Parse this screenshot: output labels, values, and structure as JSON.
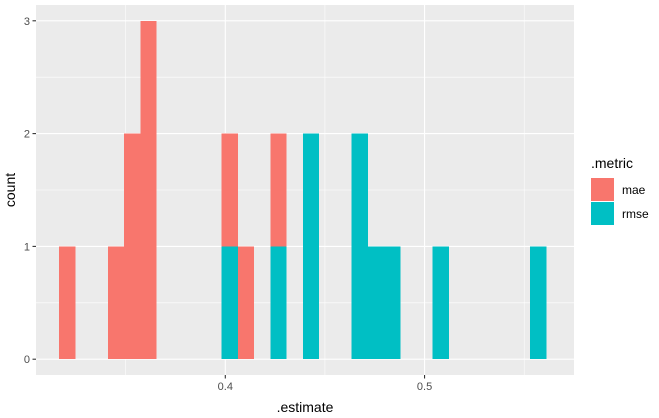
{
  "chart_data": {
    "type": "bar",
    "stacked": true,
    "xlabel": ".estimate",
    "ylabel": "count",
    "xlim": [
      0.305,
      0.575
    ],
    "ylim": [
      -0.14,
      3.14
    ],
    "x_ticks": [
      0.4,
      0.5
    ],
    "x_tick_labels": [
      "0.4",
      "0.5"
    ],
    "y_ticks": [
      0,
      1,
      2,
      3
    ],
    "y_tick_labels": [
      "0",
      "1",
      "2",
      "3"
    ],
    "grid": true,
    "background": "#ebebeb",
    "legend": {
      "title": ".metric",
      "placement": "right"
    },
    "bin_width": 0.00815,
    "series": [
      {
        "name": "mae",
        "color": "#f8766d",
        "bins": [
          {
            "x0": 0.3166,
            "count": 1
          },
          {
            "x0": 0.3411,
            "count": 1
          },
          {
            "x0": 0.3492,
            "count": 2
          },
          {
            "x0": 0.3574,
            "count": 3
          },
          {
            "x0": 0.3981,
            "count": 1
          },
          {
            "x0": 0.4063,
            "count": 1
          },
          {
            "x0": 0.4226,
            "count": 1
          }
        ]
      },
      {
        "name": "rmse",
        "color": "#00bfc4",
        "bins": [
          {
            "x0": 0.3981,
            "count": 1
          },
          {
            "x0": 0.4226,
            "count": 1
          },
          {
            "x0": 0.4389,
            "count": 2
          },
          {
            "x0": 0.4634,
            "count": 2
          },
          {
            "x0": 0.4715,
            "count": 1
          },
          {
            "x0": 0.4797,
            "count": 1
          },
          {
            "x0": 0.5041,
            "count": 1
          },
          {
            "x0": 0.553,
            "count": 1
          }
        ]
      }
    ]
  }
}
